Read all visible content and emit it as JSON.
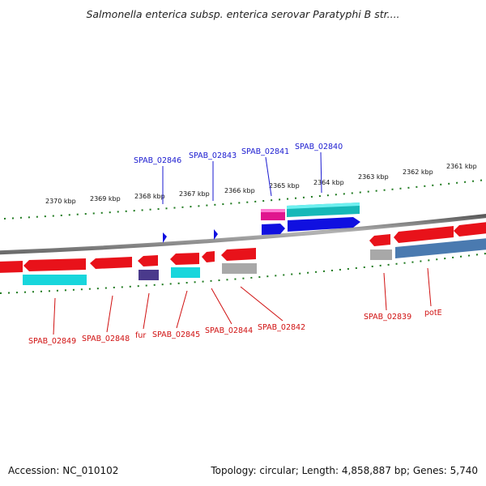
{
  "title": "Salmonella enterica subsp. enterica serovar Paratyphi B str....",
  "accession": "Accession: NC_010102",
  "summary": "Topology: circular; Length: 4,858,887 bp; Genes: 5,740",
  "colors": {
    "backbone": "#8a8a8a",
    "ticks": "#1f7a1f",
    "forward_label": "#1a1ad0",
    "reverse_label": "#d01010",
    "red_gene": "#e8121a",
    "blue_gene": "#1010e0",
    "cyan_gene": "#18d6dc",
    "teal_gene": "#16b8b8",
    "magenta_gene": "#e0168e",
    "purple_gene": "#4a3a8c",
    "grey_gene": "#a8a8a8",
    "steel_gene": "#4a7ab0"
  },
  "scale_labels": [
    "2370 kbp",
    "2369 kbp",
    "2368 kbp",
    "2367 kbp",
    "2366 kbp",
    "2365 kbp",
    "2364 kbp",
    "2363 kbp",
    "2362 kbp",
    "2361 kbp"
  ],
  "top_labels": [
    "SPAB_02846",
    "SPAB_02843",
    "SPAB_02841",
    "SPAB_02840"
  ],
  "bottom_labels": [
    "SPAB_02849",
    "SPAB_02848",
    "fur",
    "SPAB_02845",
    "SPAB_02844",
    "SPAB_02842",
    "SPAB_02839",
    "potE"
  ]
}
